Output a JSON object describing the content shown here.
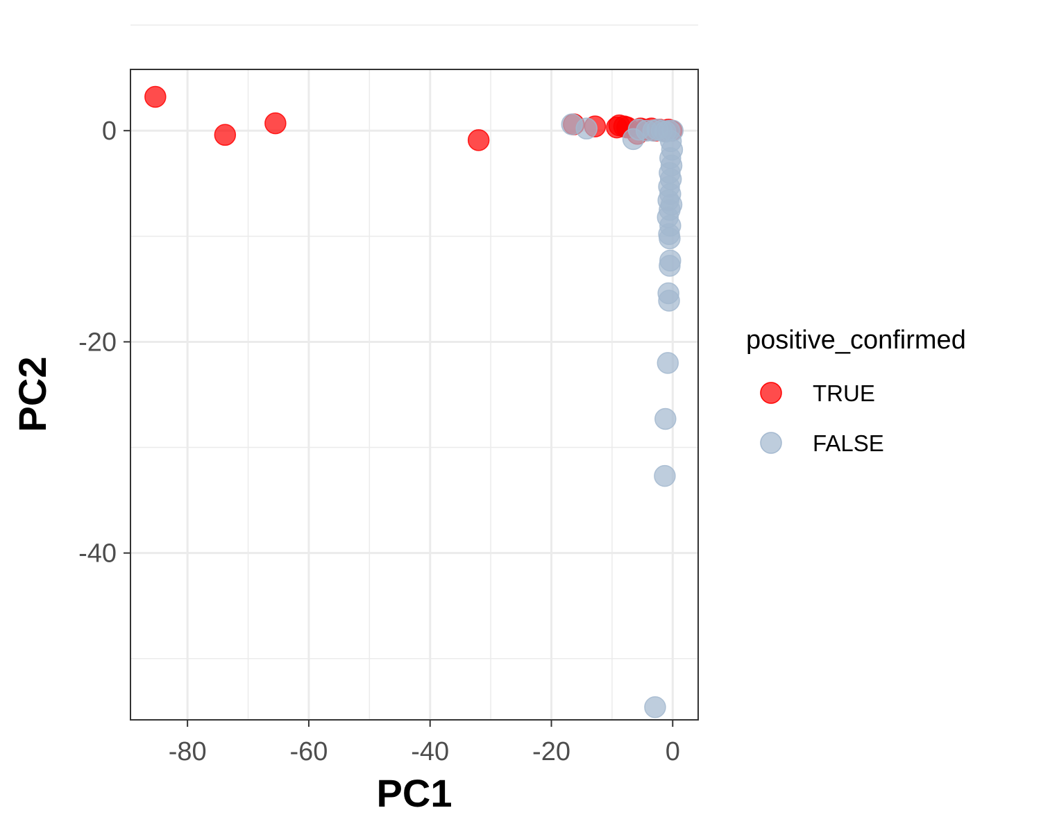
{
  "chart_data": {
    "type": "scatter",
    "title": "",
    "xlabel": "PC1",
    "ylabel": "PC2",
    "xlim": [
      -89.4,
      4.2
    ],
    "ylim": [
      -55.8,
      5.8
    ],
    "x_ticks": [
      -80,
      -60,
      -40,
      -20,
      0
    ],
    "y_ticks": [
      0,
      -20,
      -40
    ],
    "x_tick_labels": [
      "-80",
      "-60",
      "-40",
      "-20",
      "0"
    ],
    "y_tick_labels": [
      "0",
      "-20",
      "-40"
    ],
    "grid": true,
    "legend": {
      "title": "positive_confirmed",
      "position": "right"
    },
    "series": [
      {
        "name": "TRUE",
        "color": "#ff0000",
        "points": [
          {
            "x": -85.3,
            "y": 3.2
          },
          {
            "x": -73.8,
            "y": -0.4
          },
          {
            "x": -65.5,
            "y": 0.7
          },
          {
            "x": -32.0,
            "y": -0.9
          },
          {
            "x": -16.3,
            "y": 0.6
          },
          {
            "x": -12.8,
            "y": 0.4
          },
          {
            "x": -9.2,
            "y": 0.3
          },
          {
            "x": -8.8,
            "y": 0.5
          },
          {
            "x": -8.0,
            "y": 0.4
          },
          {
            "x": -7.5,
            "y": 0.3
          },
          {
            "x": -5.8,
            "y": -0.3
          },
          {
            "x": -5.3,
            "y": 0.2
          },
          {
            "x": -4.6,
            "y": 0.1
          },
          {
            "x": -3.5,
            "y": 0.2
          },
          {
            "x": -2.8,
            "y": 0.0
          },
          {
            "x": -2.2,
            "y": 0.1
          },
          {
            "x": -1.4,
            "y": 0.0
          },
          {
            "x": -0.7,
            "y": 0.1
          },
          {
            "x": -0.2,
            "y": 0.0
          }
        ]
      },
      {
        "name": "FALSE",
        "color": "#a3b8cf",
        "points": [
          {
            "x": -16.6,
            "y": 0.6
          },
          {
            "x": -14.2,
            "y": 0.2
          },
          {
            "x": -6.5,
            "y": -0.8
          },
          {
            "x": -5.6,
            "y": 0.1
          },
          {
            "x": -4.3,
            "y": 0.0
          },
          {
            "x": -3.2,
            "y": 0.0
          },
          {
            "x": -2.5,
            "y": 0.1
          },
          {
            "x": -1.8,
            "y": 0.0
          },
          {
            "x": -1.2,
            "y": -0.1
          },
          {
            "x": -0.6,
            "y": 0.0
          },
          {
            "x": 0.0,
            "y": 0.0
          },
          {
            "x": -0.3,
            "y": -1.0
          },
          {
            "x": -0.1,
            "y": -1.8
          },
          {
            "x": -0.4,
            "y": -2.6
          },
          {
            "x": -0.2,
            "y": -3.3
          },
          {
            "x": -0.5,
            "y": -4.0
          },
          {
            "x": -0.3,
            "y": -4.6
          },
          {
            "x": -0.6,
            "y": -5.3
          },
          {
            "x": -0.4,
            "y": -6.0
          },
          {
            "x": -0.7,
            "y": -6.6
          },
          {
            "x": -0.2,
            "y": -7.0
          },
          {
            "x": -0.5,
            "y": -7.5
          },
          {
            "x": -0.8,
            "y": -8.2
          },
          {
            "x": -0.4,
            "y": -9.0
          },
          {
            "x": -0.6,
            "y": -9.8
          },
          {
            "x": -0.5,
            "y": -10.2
          },
          {
            "x": -0.4,
            "y": -12.3
          },
          {
            "x": -0.5,
            "y": -12.8
          },
          {
            "x": -0.7,
            "y": -15.4
          },
          {
            "x": -0.6,
            "y": -16.1
          },
          {
            "x": -0.8,
            "y": -22.0
          },
          {
            "x": -1.2,
            "y": -27.3
          },
          {
            "x": -1.3,
            "y": -32.7
          },
          {
            "x": -2.9,
            "y": -54.6
          }
        ]
      }
    ]
  }
}
